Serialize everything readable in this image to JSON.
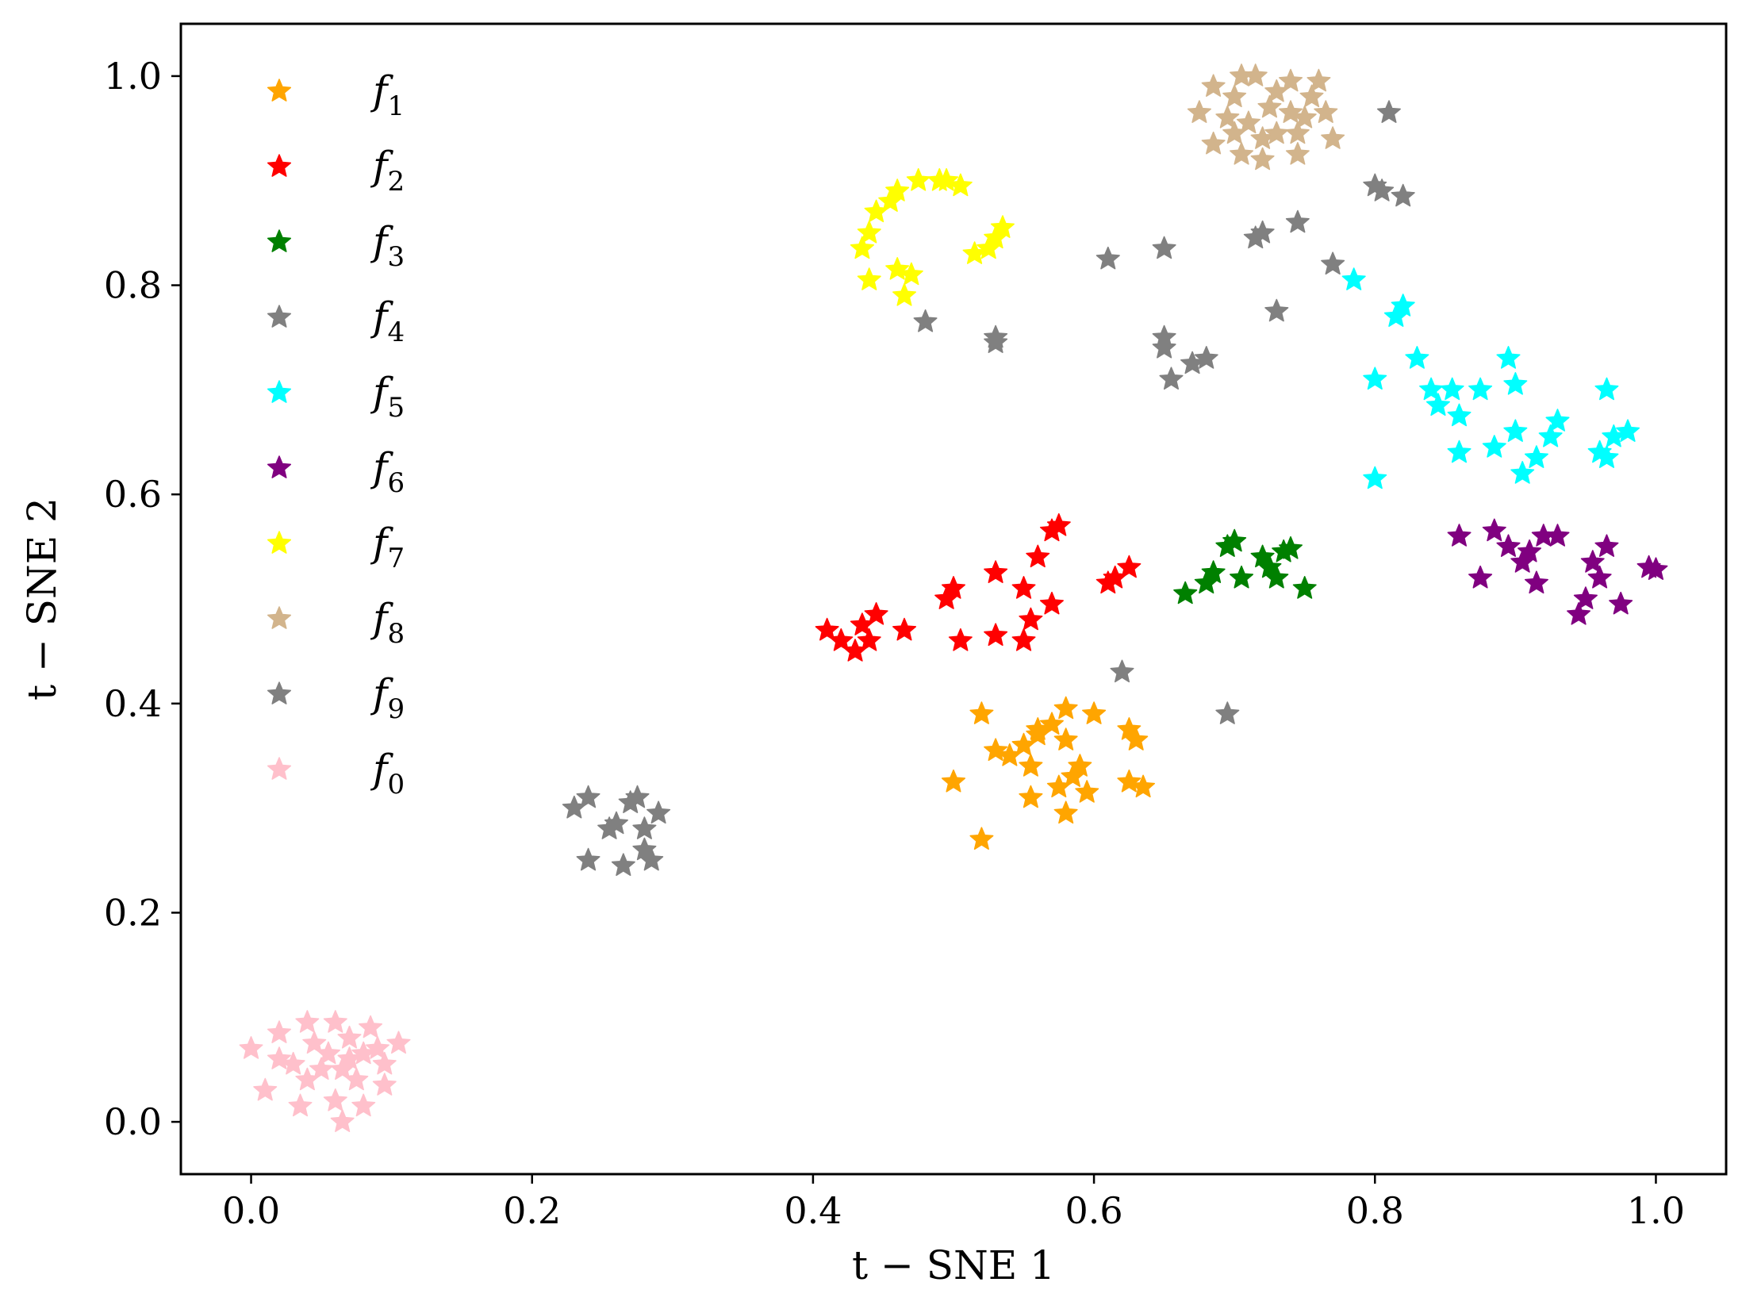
{
  "chart_data": {
    "type": "scatter",
    "title": "",
    "xlabel": "t − SNE 1",
    "ylabel": "t − SNE 2",
    "xlim": [
      -0.05,
      1.05
    ],
    "ylim": [
      -0.05,
      1.05
    ],
    "xticks": [
      "0.0",
      "0.2",
      "0.4",
      "0.6",
      "0.8",
      "1.0"
    ],
    "yticks": [
      "0.0",
      "0.2",
      "0.4",
      "0.6",
      "0.8",
      "1.0"
    ],
    "marker": "star",
    "legend_position": "upper-left",
    "series": [
      {
        "name": "f",
        "sub": "1",
        "color": "#FFA500",
        "points": [
          [
            0.52,
            0.39
          ],
          [
            0.53,
            0.355
          ],
          [
            0.54,
            0.35
          ],
          [
            0.5,
            0.325
          ],
          [
            0.52,
            0.27
          ],
          [
            0.55,
            0.36
          ],
          [
            0.56,
            0.37
          ],
          [
            0.57,
            0.38
          ],
          [
            0.58,
            0.395
          ],
          [
            0.6,
            0.39
          ],
          [
            0.555,
            0.34
          ],
          [
            0.58,
            0.365
          ],
          [
            0.59,
            0.34
          ],
          [
            0.585,
            0.33
          ],
          [
            0.555,
            0.31
          ],
          [
            0.575,
            0.32
          ],
          [
            0.595,
            0.315
          ],
          [
            0.58,
            0.295
          ],
          [
            0.625,
            0.375
          ],
          [
            0.63,
            0.365
          ],
          [
            0.625,
            0.325
          ],
          [
            0.635,
            0.32
          ],
          [
            0.56,
            0.375
          ]
        ]
      },
      {
        "name": "f",
        "sub": "2",
        "color": "#FF0000",
        "points": [
          [
            0.41,
            0.47
          ],
          [
            0.42,
            0.46
          ],
          [
            0.43,
            0.45
          ],
          [
            0.435,
            0.475
          ],
          [
            0.445,
            0.485
          ],
          [
            0.44,
            0.46
          ],
          [
            0.465,
            0.47
          ],
          [
            0.495,
            0.5
          ],
          [
            0.5,
            0.51
          ],
          [
            0.505,
            0.46
          ],
          [
            0.53,
            0.525
          ],
          [
            0.53,
            0.465
          ],
          [
            0.55,
            0.51
          ],
          [
            0.555,
            0.48
          ],
          [
            0.55,
            0.46
          ],
          [
            0.56,
            0.54
          ],
          [
            0.57,
            0.495
          ],
          [
            0.575,
            0.57
          ],
          [
            0.57,
            0.565
          ],
          [
            0.61,
            0.515
          ],
          [
            0.615,
            0.52
          ],
          [
            0.625,
            0.53
          ]
        ]
      },
      {
        "name": "f",
        "sub": "3",
        "color": "#008000",
        "points": [
          [
            0.665,
            0.505
          ],
          [
            0.68,
            0.515
          ],
          [
            0.685,
            0.525
          ],
          [
            0.695,
            0.55
          ],
          [
            0.7,
            0.555
          ],
          [
            0.705,
            0.52
          ],
          [
            0.72,
            0.54
          ],
          [
            0.725,
            0.53
          ],
          [
            0.73,
            0.52
          ],
          [
            0.735,
            0.545
          ],
          [
            0.74,
            0.548
          ],
          [
            0.75,
            0.51
          ]
        ]
      },
      {
        "name": "f",
        "sub": "4",
        "color": "#808080",
        "points": [
          [
            0.48,
            0.765
          ],
          [
            0.53,
            0.75
          ],
          [
            0.53,
            0.745
          ],
          [
            0.61,
            0.825
          ],
          [
            0.65,
            0.835
          ],
          [
            0.65,
            0.75
          ],
          [
            0.65,
            0.74
          ],
          [
            0.655,
            0.71
          ],
          [
            0.67,
            0.725
          ],
          [
            0.68,
            0.73
          ],
          [
            0.715,
            0.845
          ],
          [
            0.72,
            0.85
          ],
          [
            0.73,
            0.775
          ],
          [
            0.745,
            0.86
          ],
          [
            0.77,
            0.82
          ],
          [
            0.8,
            0.895
          ],
          [
            0.805,
            0.89
          ],
          [
            0.82,
            0.885
          ],
          [
            0.81,
            0.965
          ],
          [
            0.62,
            0.43
          ],
          [
            0.695,
            0.39
          ]
        ]
      },
      {
        "name": "f",
        "sub": "5",
        "color": "#00FFFF",
        "points": [
          [
            0.785,
            0.805
          ],
          [
            0.815,
            0.77
          ],
          [
            0.82,
            0.78
          ],
          [
            0.8,
            0.71
          ],
          [
            0.8,
            0.615
          ],
          [
            0.83,
            0.73
          ],
          [
            0.84,
            0.7
          ],
          [
            0.845,
            0.685
          ],
          [
            0.855,
            0.7
          ],
          [
            0.86,
            0.675
          ],
          [
            0.86,
            0.64
          ],
          [
            0.875,
            0.7
          ],
          [
            0.885,
            0.645
          ],
          [
            0.895,
            0.73
          ],
          [
            0.9,
            0.705
          ],
          [
            0.9,
            0.66
          ],
          [
            0.905,
            0.62
          ],
          [
            0.915,
            0.635
          ],
          [
            0.925,
            0.655
          ],
          [
            0.93,
            0.67
          ],
          [
            0.96,
            0.64
          ],
          [
            0.965,
            0.635
          ],
          [
            0.965,
            0.7
          ],
          [
            0.97,
            0.655
          ],
          [
            0.98,
            0.66
          ]
        ]
      },
      {
        "name": "f",
        "sub": "6",
        "color": "#800080",
        "points": [
          [
            0.86,
            0.56
          ],
          [
            0.875,
            0.52
          ],
          [
            0.885,
            0.565
          ],
          [
            0.895,
            0.55
          ],
          [
            0.905,
            0.535
          ],
          [
            0.91,
            0.545
          ],
          [
            0.915,
            0.515
          ],
          [
            0.92,
            0.56
          ],
          [
            0.93,
            0.56
          ],
          [
            0.945,
            0.485
          ],
          [
            0.95,
            0.5
          ],
          [
            0.955,
            0.535
          ],
          [
            0.96,
            0.52
          ],
          [
            0.965,
            0.55
          ],
          [
            0.975,
            0.495
          ],
          [
            0.995,
            0.53
          ],
          [
            1.0,
            0.528
          ]
        ]
      },
      {
        "name": "f",
        "sub": "7",
        "color": "#FFFF00",
        "points": [
          [
            0.435,
            0.835
          ],
          [
            0.44,
            0.85
          ],
          [
            0.445,
            0.87
          ],
          [
            0.455,
            0.88
          ],
          [
            0.46,
            0.89
          ],
          [
            0.475,
            0.9
          ],
          [
            0.49,
            0.9
          ],
          [
            0.495,
            0.9
          ],
          [
            0.505,
            0.895
          ],
          [
            0.515,
            0.83
          ],
          [
            0.525,
            0.835
          ],
          [
            0.53,
            0.845
          ],
          [
            0.535,
            0.855
          ],
          [
            0.44,
            0.805
          ],
          [
            0.46,
            0.815
          ],
          [
            0.47,
            0.81
          ],
          [
            0.465,
            0.79
          ]
        ]
      },
      {
        "name": "f",
        "sub": "8",
        "color": "#D2B48C",
        "points": [
          [
            0.675,
            0.965
          ],
          [
            0.685,
            0.99
          ],
          [
            0.685,
            0.935
          ],
          [
            0.695,
            0.96
          ],
          [
            0.7,
            0.98
          ],
          [
            0.705,
            1.0
          ],
          [
            0.705,
            0.925
          ],
          [
            0.71,
            0.955
          ],
          [
            0.715,
            1.0
          ],
          [
            0.72,
            0.94
          ],
          [
            0.72,
            0.92
          ],
          [
            0.725,
            0.97
          ],
          [
            0.73,
            0.985
          ],
          [
            0.73,
            0.945
          ],
          [
            0.74,
            0.965
          ],
          [
            0.74,
            0.995
          ],
          [
            0.745,
            0.945
          ],
          [
            0.745,
            0.925
          ],
          [
            0.75,
            0.96
          ],
          [
            0.755,
            0.98
          ],
          [
            0.76,
            0.995
          ],
          [
            0.765,
            0.965
          ],
          [
            0.77,
            0.94
          ],
          [
            0.7,
            0.945
          ]
        ]
      },
      {
        "name": "f",
        "sub": "9",
        "color": "#808080",
        "points": [
          [
            0.23,
            0.3
          ],
          [
            0.24,
            0.31
          ],
          [
            0.24,
            0.25
          ],
          [
            0.255,
            0.28
          ],
          [
            0.26,
            0.285
          ],
          [
            0.265,
            0.245
          ],
          [
            0.27,
            0.305
          ],
          [
            0.275,
            0.31
          ],
          [
            0.28,
            0.26
          ],
          [
            0.28,
            0.28
          ],
          [
            0.285,
            0.25
          ],
          [
            0.29,
            0.295
          ]
        ]
      },
      {
        "name": "f",
        "sub": "0",
        "color": "#FFC0CB",
        "points": [
          [
            0.0,
            0.07
          ],
          [
            0.01,
            0.03
          ],
          [
            0.02,
            0.06
          ],
          [
            0.02,
            0.085
          ],
          [
            0.03,
            0.055
          ],
          [
            0.035,
            0.015
          ],
          [
            0.04,
            0.04
          ],
          [
            0.04,
            0.095
          ],
          [
            0.045,
            0.075
          ],
          [
            0.05,
            0.05
          ],
          [
            0.055,
            0.065
          ],
          [
            0.06,
            0.02
          ],
          [
            0.06,
            0.095
          ],
          [
            0.065,
            0.0
          ],
          [
            0.065,
            0.05
          ],
          [
            0.07,
            0.08
          ],
          [
            0.07,
            0.06
          ],
          [
            0.075,
            0.04
          ],
          [
            0.08,
            0.065
          ],
          [
            0.08,
            0.015
          ],
          [
            0.085,
            0.09
          ],
          [
            0.09,
            0.07
          ],
          [
            0.095,
            0.035
          ],
          [
            0.095,
            0.055
          ],
          [
            0.105,
            0.075
          ]
        ]
      }
    ]
  }
}
